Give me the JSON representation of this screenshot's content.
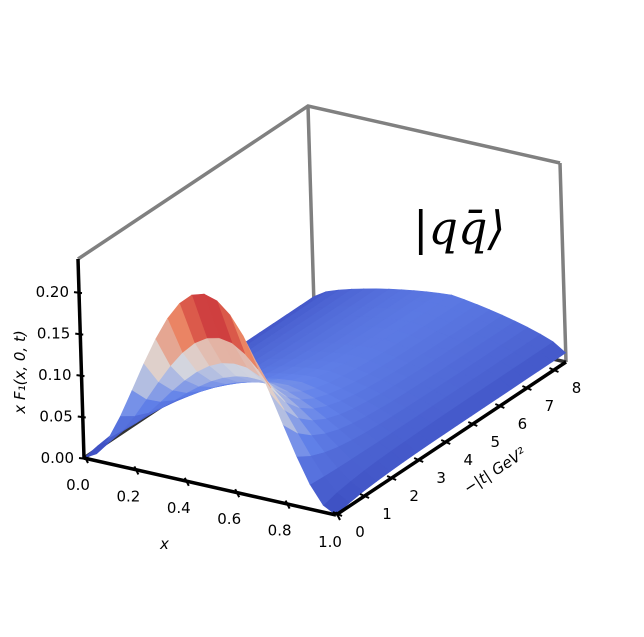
{
  "chart_data": {
    "type": "surface",
    "title": "",
    "annotation": "|qq̄⟩",
    "xlabel": "x",
    "ylabel": "−|t| GeV²",
    "zlabel": "x F₁(x, 0, t)",
    "x_ticks": [
      "0.0",
      "0.2",
      "0.4",
      "0.6",
      "0.8",
      "1.0"
    ],
    "y_ticks": [
      "0",
      "1",
      "2",
      "3",
      "4",
      "5",
      "6",
      "7",
      "8"
    ],
    "z_ticks": [
      "0.00",
      "0.05",
      "0.10",
      "0.15",
      "0.20"
    ],
    "xlim": [
      0,
      1
    ],
    "ylim": [
      0,
      8.5
    ],
    "zlim": [
      0,
      0.24
    ],
    "colormap": "coolwarm",
    "colors": {
      "low": "#3b4cc0",
      "mid": "#dddddd",
      "high": "#b40426",
      "peak": "#7a0403"
    },
    "surface": {
      "x": [
        0.0,
        0.05,
        0.1,
        0.15,
        0.2,
        0.25,
        0.3,
        0.35,
        0.4,
        0.45,
        0.5,
        0.55,
        0.6,
        0.65,
        0.7,
        0.75,
        0.8,
        0.85,
        0.9,
        0.95,
        1.0
      ],
      "t": [
        0.0,
        0.5,
        1.0,
        1.5,
        2.0,
        2.5,
        3.0,
        3.5,
        4.0,
        4.5,
        5.0,
        5.5,
        6.0,
        6.5,
        7.0,
        7.5,
        8.0,
        8.5
      ],
      "peak_value_at_t0": 0.232,
      "peak_x_at_t0": 0.5
    }
  }
}
